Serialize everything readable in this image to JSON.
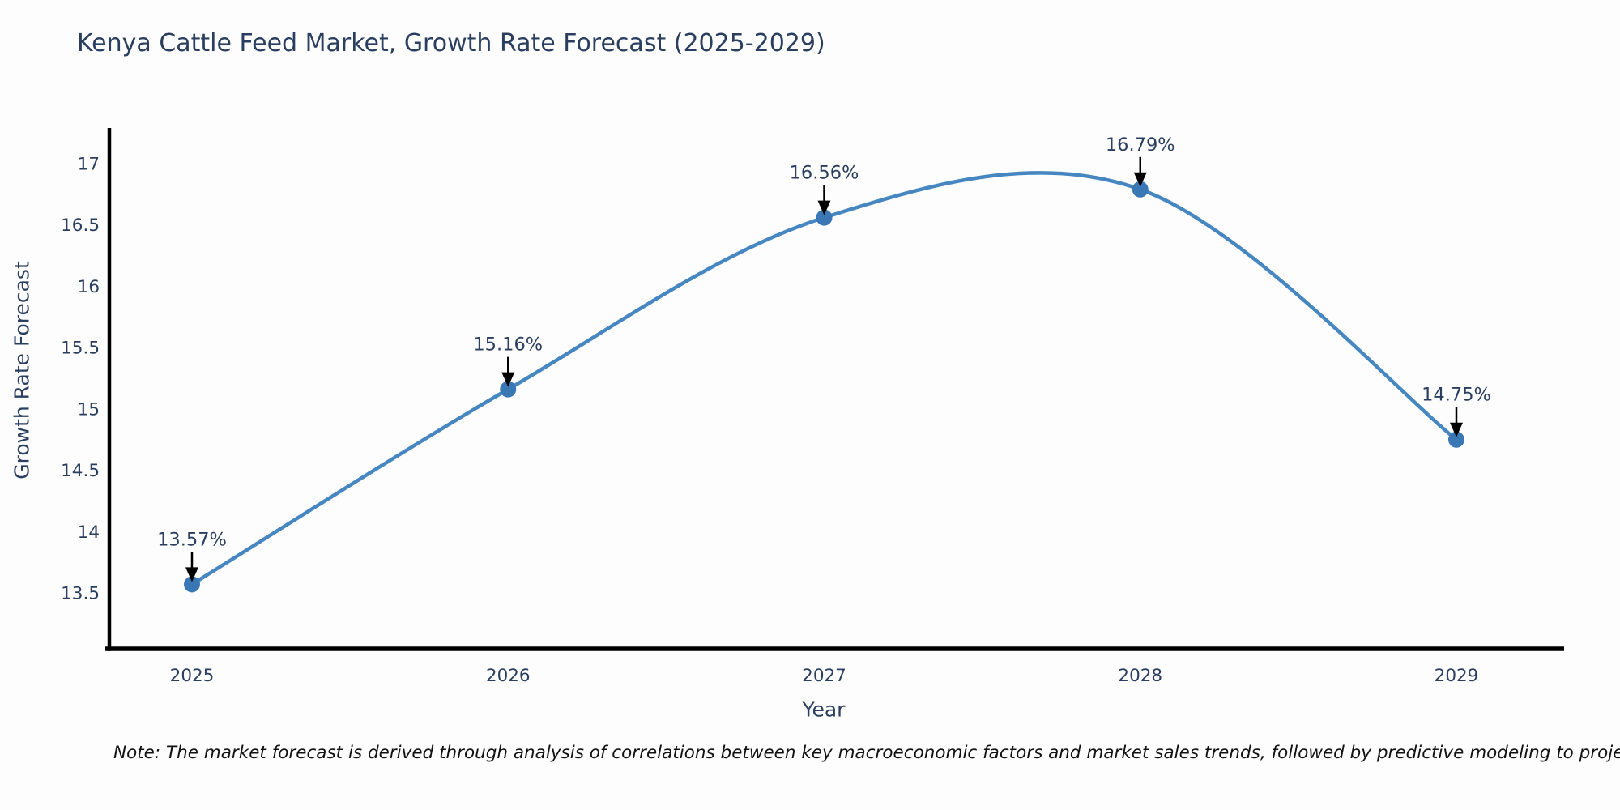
{
  "title": "Kenya Cattle Feed Market, Growth Rate Forecast (2025-2029)",
  "note": "Note: The market forecast is derived through analysis of correlations between key macroeconomic factors and market sales trends, followed by predictive modeling to project future sales",
  "colors": {
    "line": "#4687c1",
    "marker": "#3a77b5",
    "axis": "#000000",
    "text": "#2a3f5f",
    "arrow": "#000000",
    "background": "#fdfdfe",
    "note_text": "#111111"
  },
  "chart_data": {
    "type": "line",
    "title": "Kenya Cattle Feed Market, Growth Rate Forecast (2025-2029)",
    "x": [
      2025,
      2026,
      2027,
      2028,
      2029
    ],
    "values": [
      13.57,
      15.16,
      16.56,
      16.79,
      14.75
    ],
    "point_labels": [
      "13.57%",
      "15.16%",
      "16.56%",
      "16.79%",
      "14.75%"
    ],
    "xlabel": "Year",
    "ylabel": "Growth Rate Forecast",
    "ylim": [
      13.05,
      17.28
    ],
    "yticks": [
      13.5,
      14,
      14.5,
      15,
      15.5,
      16,
      16.5,
      17
    ],
    "grid": false,
    "legend": "none",
    "line_shape": "spline",
    "markers": true,
    "annotations": "each point labeled with its percent value and a downward black arrow"
  }
}
